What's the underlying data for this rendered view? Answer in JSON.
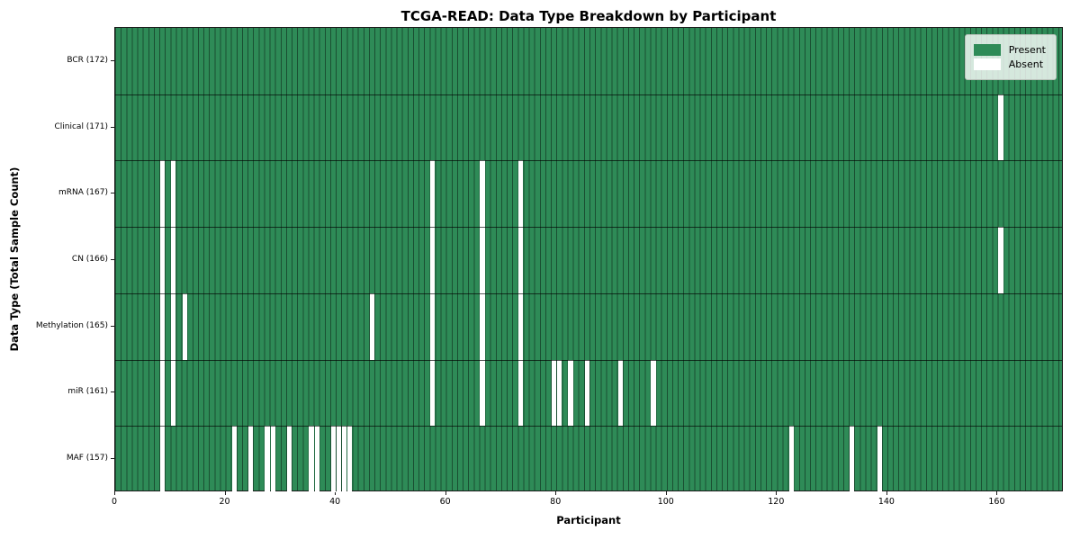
{
  "title": "TCGA-READ: Data Type Breakdown by Participant",
  "xlabel": "Participant",
  "ylabel": "Data Type (Total Sample Count)",
  "legend": {
    "present_label": "Present",
    "absent_label": "Absent"
  },
  "colors": {
    "present": "#2e8b57",
    "absent": "#ffffff",
    "gridline": "rgba(10,30,20,0.55)",
    "separator": "rgba(0,0,0,0.65)"
  },
  "chart_data": {
    "type": "heatmap",
    "n_participants": 172,
    "x_ticks": [
      0,
      20,
      40,
      60,
      80,
      100,
      120,
      140,
      160
    ],
    "x_range": [
      0,
      172
    ],
    "legend_position": "upper right",
    "grid": "per-participant vertical gridlines, horizontal row separators",
    "rows": [
      {
        "name": "bcr",
        "label": "BCR (172)",
        "total_present": 172,
        "absent_participants": []
      },
      {
        "name": "clinical",
        "label": "Clinical (171)",
        "total_present": 171,
        "absent_participants": [
          160
        ]
      },
      {
        "name": "mrna",
        "label": "mRNA (167)",
        "total_present": 167,
        "absent_participants": [
          8,
          10,
          57,
          66,
          73
        ]
      },
      {
        "name": "cn",
        "label": "CN (166)",
        "total_present": 166,
        "absent_participants": [
          8,
          10,
          57,
          66,
          73,
          160
        ]
      },
      {
        "name": "methylation",
        "label": "Methylation (165)",
        "total_present": 165,
        "absent_participants": [
          8,
          10,
          12,
          46,
          57,
          66,
          73
        ]
      },
      {
        "name": "mir",
        "label": "miR (161)",
        "total_present": 161,
        "absent_participants": [
          8,
          10,
          57,
          66,
          73,
          79,
          80,
          82,
          85,
          91,
          97
        ]
      },
      {
        "name": "maf",
        "label": "MAF (157)",
        "total_present": 157,
        "absent_participants": [
          8,
          21,
          24,
          27,
          28,
          31,
          35,
          36,
          39,
          40,
          41,
          42,
          122,
          133,
          138
        ]
      }
    ]
  }
}
